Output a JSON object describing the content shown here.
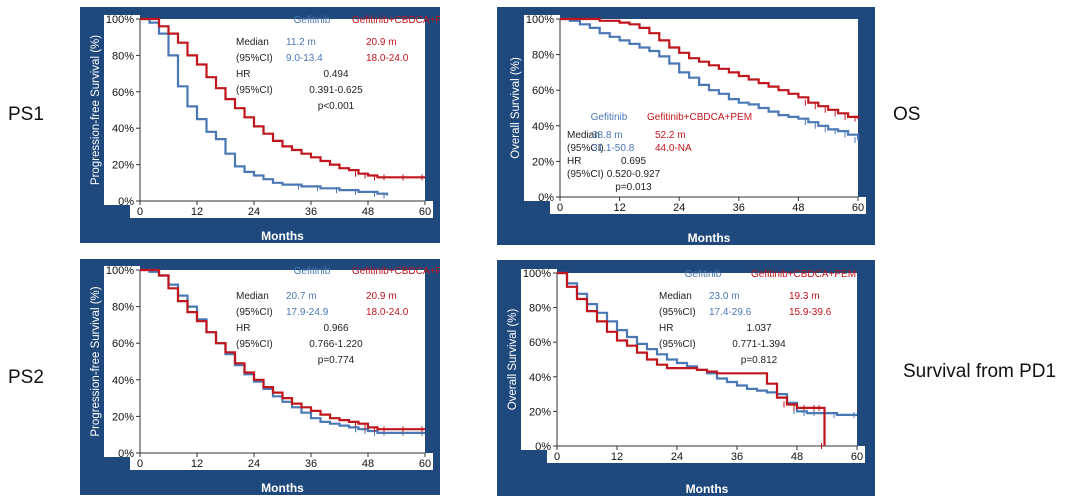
{
  "colors": {
    "frame": "#1f497d",
    "gefitinib": "#4a78b5",
    "combo": "#c0151c",
    "plot_bg": "#ffffff",
    "text_dark": "#222222",
    "axis_text": "#111111",
    "axis_title": "#ffffff"
  },
  "side_labels": {
    "ps1": "PS1",
    "ps2": "PS2",
    "os": "OS",
    "pd1": "Survival from PD1"
  },
  "chart_data": [
    {
      "id": "ps1",
      "type": "line",
      "ylabel": "Progression-free Survival (%)",
      "xlabel": "Months",
      "xlim": [
        0,
        60
      ],
      "ylim": [
        0,
        100
      ],
      "xticks": [
        "0",
        "12",
        "24",
        "36",
        "48",
        "60"
      ],
      "yticks": [
        "0%",
        "20%",
        "40%",
        "60%",
        "80%",
        "100%"
      ],
      "legend": [
        "Gefitinib",
        "Gefitinib+CBDCA+PEM"
      ],
      "stats": {
        "median_label": "Median",
        "median_gef": "11.2 m",
        "median_combo": "20.9 m",
        "ci_label": "(95%CI)",
        "ci_gef": "9.0-13.4",
        "ci_combo": "18.0-24.0",
        "hr_label": "HR",
        "hr": "0.494",
        "hr_ci_label": "(95%CI)",
        "hr_ci": "0.391-0.625",
        "p": "p<0.001"
      },
      "series": [
        {
          "name": "Gefitinib",
          "x": [
            0,
            2,
            4,
            6,
            8,
            10,
            12,
            14,
            16,
            18,
            20,
            22,
            24,
            26,
            28,
            30,
            34,
            38,
            42,
            46,
            50,
            52
          ],
          "y": [
            100,
            98,
            92,
            80,
            63,
            52,
            45,
            38,
            34,
            26,
            19,
            16,
            14,
            12,
            10,
            9,
            8,
            7,
            6,
            5,
            4,
            3
          ]
        },
        {
          "name": "Gefitinib+CBDCA+PEM",
          "x": [
            0,
            2,
            4,
            6,
            8,
            10,
            12,
            14,
            16,
            18,
            20,
            22,
            24,
            26,
            28,
            30,
            32,
            34,
            36,
            38,
            40,
            42,
            44,
            46,
            48,
            50,
            52,
            56,
            60
          ],
          "y": [
            100,
            100,
            96,
            92,
            87,
            80,
            75,
            68,
            62,
            56,
            51,
            46,
            41,
            37,
            33,
            30,
            28,
            26,
            24,
            22,
            20,
            18,
            17,
            15,
            14,
            13,
            13,
            13,
            13
          ]
        }
      ]
    },
    {
      "id": "os",
      "type": "line",
      "ylabel": "Overall Survival (%)",
      "xlabel": "Months",
      "xlim": [
        0,
        60
      ],
      "ylim": [
        0,
        100
      ],
      "xticks": [
        "0",
        "12",
        "24",
        "36",
        "48",
        "60"
      ],
      "yticks": [
        "0%",
        "20%",
        "40%",
        "60%",
        "80%",
        "100%"
      ],
      "legend": [
        "Gefitinib",
        "Gefitinib+CBDCA+PEM"
      ],
      "stats": {
        "median_label": "Median",
        "median_gef": "38.8 m",
        "median_combo": "52.2 m",
        "ci_label": "(95%CI)",
        "ci_gef": "31.1-50.8",
        "ci_combo": "44.0-NA",
        "hr_label": "HR",
        "hr": "0.695",
        "hr_ci_label": "(95%CI)",
        "hr_ci": "0.520-0.927",
        "p": "p=0.013"
      },
      "series": [
        {
          "name": "Gefitinib",
          "x": [
            0,
            2,
            4,
            6,
            8,
            10,
            12,
            14,
            16,
            18,
            20,
            22,
            24,
            26,
            28,
            30,
            32,
            34,
            36,
            38,
            40,
            42,
            44,
            46,
            48,
            50,
            52,
            54,
            56,
            58,
            60
          ],
          "y": [
            100,
            99,
            97,
            95,
            92,
            90,
            88,
            86,
            84,
            82,
            79,
            75,
            70,
            67,
            63,
            60,
            58,
            55,
            53,
            52,
            50,
            48,
            46,
            45,
            44,
            42,
            40,
            38,
            37,
            35,
            32
          ]
        },
        {
          "name": "Gefitinib+CBDCA+PEM",
          "x": [
            0,
            4,
            8,
            12,
            14,
            16,
            18,
            20,
            22,
            24,
            26,
            28,
            30,
            32,
            34,
            36,
            38,
            40,
            42,
            44,
            46,
            48,
            50,
            52,
            54,
            56,
            58,
            60
          ],
          "y": [
            100,
            100,
            99,
            98,
            97,
            95,
            92,
            88,
            84,
            81,
            78,
            76,
            74,
            72,
            70,
            68,
            66,
            64,
            62,
            60,
            58,
            56,
            53,
            51,
            49,
            47,
            45,
            44
          ]
        }
      ]
    },
    {
      "id": "ps2",
      "type": "line",
      "ylabel": "Progression-free Survival (%)",
      "xlabel": "Months",
      "xlim": [
        0,
        60
      ],
      "ylim": [
        0,
        100
      ],
      "xticks": [
        "0",
        "12",
        "24",
        "36",
        "48",
        "60"
      ],
      "yticks": [
        "0%",
        "20%",
        "40%",
        "60%",
        "80%",
        "100%"
      ],
      "legend": [
        "Gefitinib",
        "Gefitinib+CBDCA+PEM"
      ],
      "stats": {
        "median_label": "Median",
        "median_gef": "20.7 m",
        "median_combo": "20.9 m",
        "ci_label": "(95%CI)",
        "ci_gef": "17.9-24.9",
        "ci_combo": "18.0-24.0",
        "hr_label": "HR",
        "hr": "0.966",
        "hr_ci_label": "(95%CI)",
        "hr_ci": "0.766-1.220",
        "p": "p=0.774"
      },
      "series": [
        {
          "name": "Gefitinib",
          "x": [
            0,
            2,
            4,
            6,
            8,
            10,
            12,
            14,
            16,
            18,
            20,
            22,
            24,
            26,
            28,
            30,
            32,
            34,
            36,
            38,
            40,
            42,
            44,
            46,
            48,
            50,
            52,
            56,
            60
          ],
          "y": [
            100,
            99,
            97,
            92,
            86,
            80,
            73,
            66,
            60,
            54,
            48,
            43,
            39,
            35,
            31,
            28,
            25,
            22,
            19,
            17,
            16,
            15,
            14,
            13,
            12,
            11,
            11,
            11,
            11
          ]
        },
        {
          "name": "Gefitinib+CBDCA+PEM",
          "x": [
            0,
            2,
            4,
            6,
            8,
            10,
            12,
            14,
            16,
            18,
            20,
            22,
            24,
            26,
            28,
            30,
            32,
            34,
            36,
            38,
            40,
            42,
            44,
            46,
            48,
            50,
            52,
            56,
            60
          ],
          "y": [
            100,
            100,
            97,
            90,
            83,
            77,
            72,
            66,
            60,
            55,
            49,
            44,
            40,
            36,
            33,
            30,
            27,
            25,
            23,
            21,
            19,
            18,
            17,
            16,
            14,
            13,
            13,
            13,
            13
          ]
        }
      ]
    },
    {
      "id": "pd1",
      "type": "line",
      "ylabel": "Overall Survival (%)",
      "xlabel": "Months",
      "xlim": [
        0,
        60
      ],
      "ylim": [
        0,
        100
      ],
      "xticks": [
        "0",
        "12",
        "24",
        "36",
        "48",
        "60"
      ],
      "yticks": [
        "0%",
        "20%",
        "40%",
        "60%",
        "80%",
        "100%"
      ],
      "legend": [
        "Gefitinib",
        "Gefitinib+CBDCA+PEM"
      ],
      "stats": {
        "median_label": "Median",
        "median_gef": "23.0 m",
        "median_combo": "19.3 m",
        "ci_label": "(95%CI)",
        "ci_gef": "17.4-29.6",
        "ci_combo": "15.9-39.6",
        "hr_label": "HR",
        "hr": "1.037",
        "hr_ci_label": "(95%CI)",
        "hr_ci": "0.771-1.394",
        "p": "p=0.812"
      },
      "series": [
        {
          "name": "Gefitinib",
          "x": [
            0,
            2,
            4,
            6,
            8,
            10,
            12,
            14,
            16,
            18,
            20,
            22,
            24,
            26,
            28,
            30,
            32,
            34,
            36,
            38,
            40,
            42,
            44,
            46,
            48,
            50,
            52,
            54,
            56,
            60
          ],
          "y": [
            100,
            94,
            88,
            82,
            77,
            72,
            67,
            63,
            59,
            56,
            53,
            50,
            48,
            46,
            44,
            42,
            39,
            37,
            35,
            33,
            32,
            31,
            30,
            25,
            20,
            19,
            19,
            19,
            18,
            18
          ]
        },
        {
          "name": "Gefitinib+CBDCA+PEM",
          "x": [
            0,
            2,
            4,
            6,
            8,
            10,
            12,
            14,
            16,
            18,
            20,
            22,
            24,
            26,
            28,
            30,
            32,
            34,
            36,
            38,
            40,
            42,
            44,
            46,
            48,
            50,
            52,
            53,
            53.5
          ],
          "y": [
            100,
            92,
            85,
            78,
            72,
            66,
            61,
            58,
            54,
            50,
            47,
            45,
            45,
            45,
            44,
            43,
            42,
            42,
            42,
            42,
            42,
            36,
            28,
            24,
            22,
            22,
            22,
            22,
            0
          ]
        }
      ]
    }
  ]
}
